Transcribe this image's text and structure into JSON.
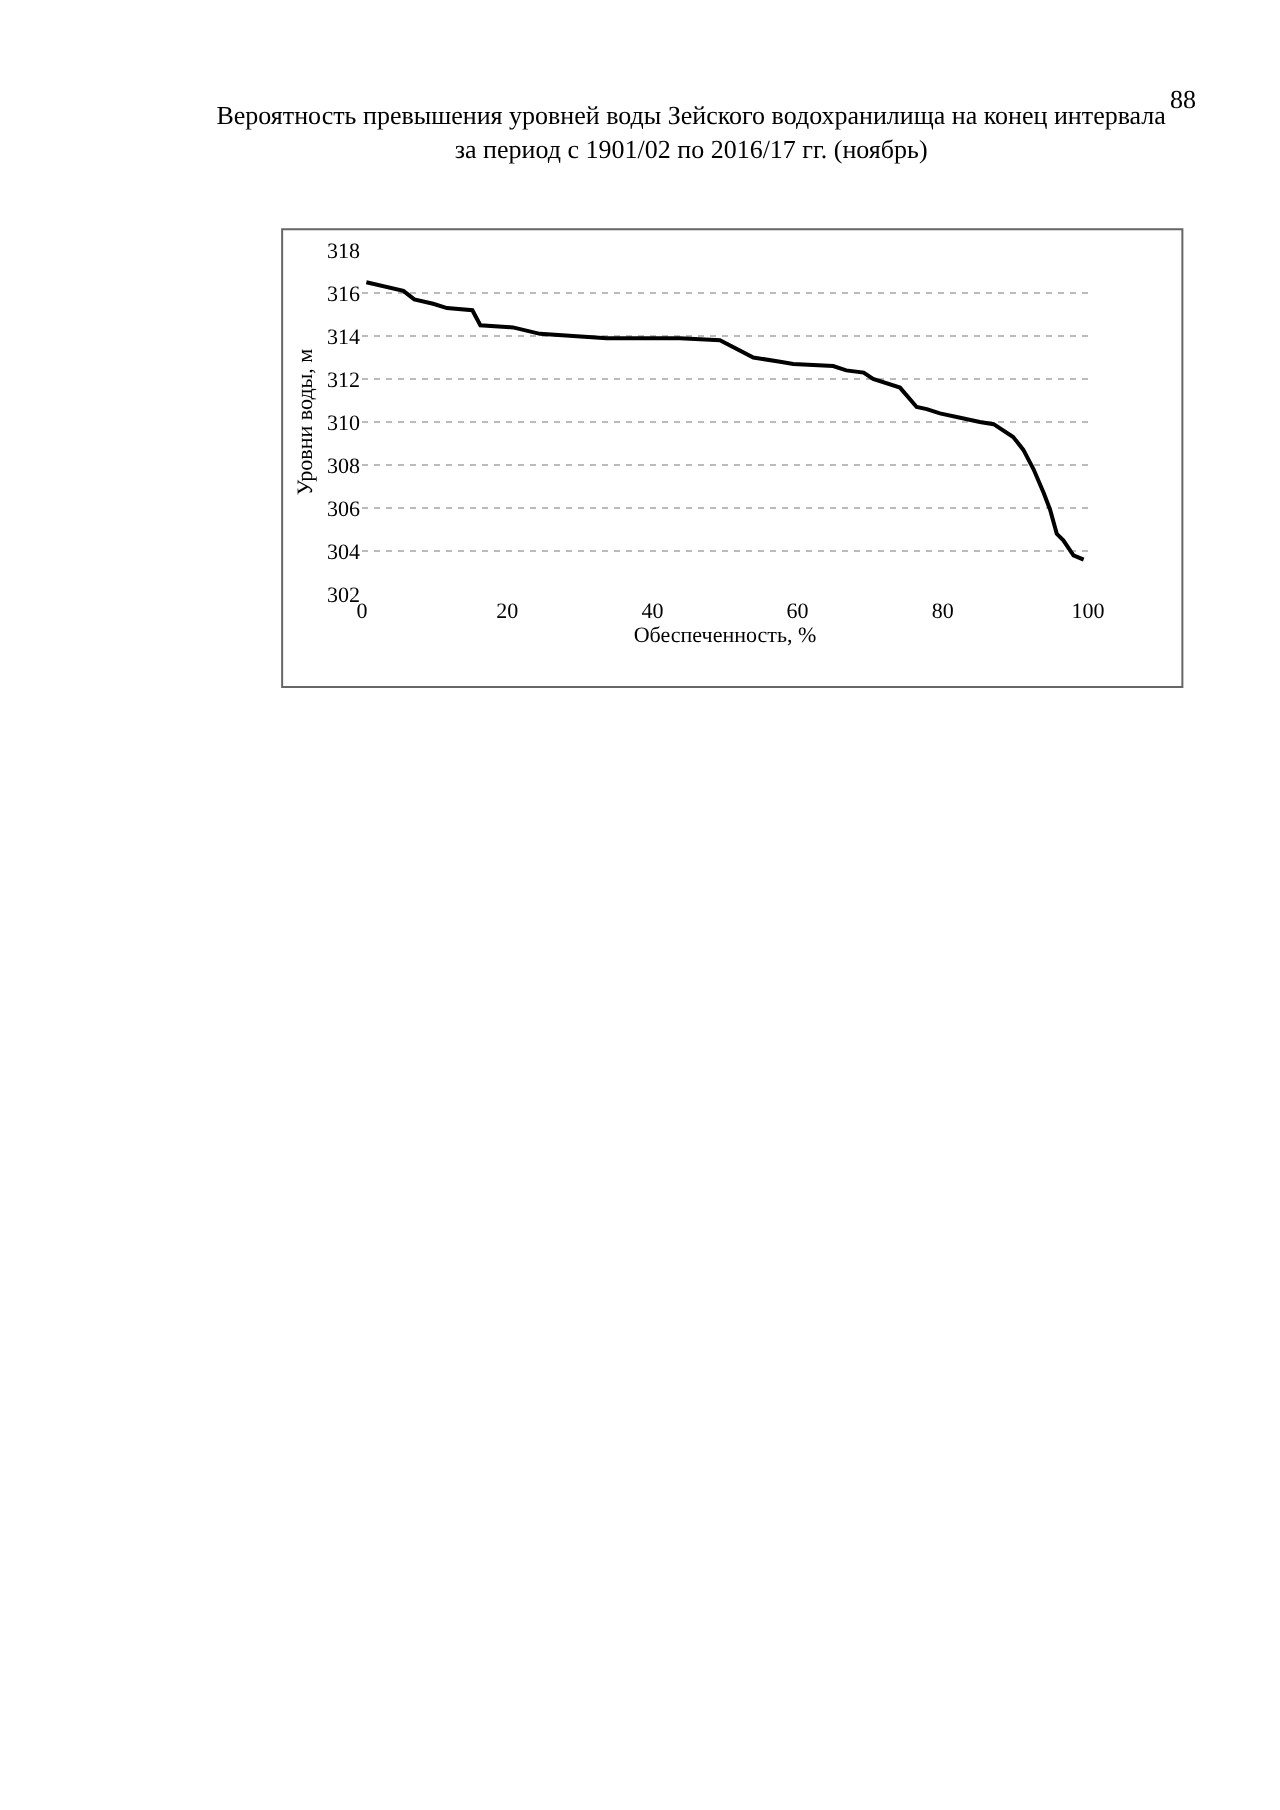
{
  "chart_data": {
    "type": "line",
    "title": "Вероятность превышения уровней воды Зейского водохранилища на конец интервала\nза период с 1901/02 по 2016/17 гг. (ноябрь)",
    "xlabel": "Обеспеченность, %",
    "ylabel": "Уровни воды, м",
    "annotations": [
      "88"
    ],
    "x": [
      0.6,
      5.7,
      7.2,
      9.8,
      11.7,
      15.2,
      16.3,
      20.8,
      24.5,
      33.7,
      43.8,
      49.3,
      53.9,
      57.6,
      59.4,
      64.9,
      66.7,
      69.1,
      70.4,
      74.1,
      76.4,
      77.8,
      79.6,
      82.4,
      85.1,
      87.0,
      89.7,
      91.1,
      92.5,
      93.9,
      94.8,
      95.7,
      96.6,
      98.0,
      99.4
    ],
    "series": [
      {
        "color": "#000000",
        "values": [
          316.5,
          316.1,
          315.7,
          315.5,
          315.3,
          315.2,
          314.5,
          314.4,
          314.1,
          313.9,
          313.9,
          313.8,
          313.0,
          312.8,
          312.7,
          312.6,
          312.4,
          312.3,
          312.0,
          311.6,
          310.7,
          310.6,
          310.4,
          310.2,
          310.0,
          309.9,
          309.3,
          308.7,
          307.8,
          306.7,
          305.9,
          304.8,
          304.5,
          303.8,
          303.6
        ]
      }
    ],
    "xlim": [
      0,
      100
    ],
    "xticks": [
      0,
      20,
      40,
      60,
      80,
      100
    ],
    "ylim": [
      302,
      318
    ],
    "yticks": [
      302,
      304,
      306,
      308,
      310,
      312,
      314,
      316,
      318
    ],
    "grid": "y",
    "marker": "none",
    "line_style": "solid"
  }
}
